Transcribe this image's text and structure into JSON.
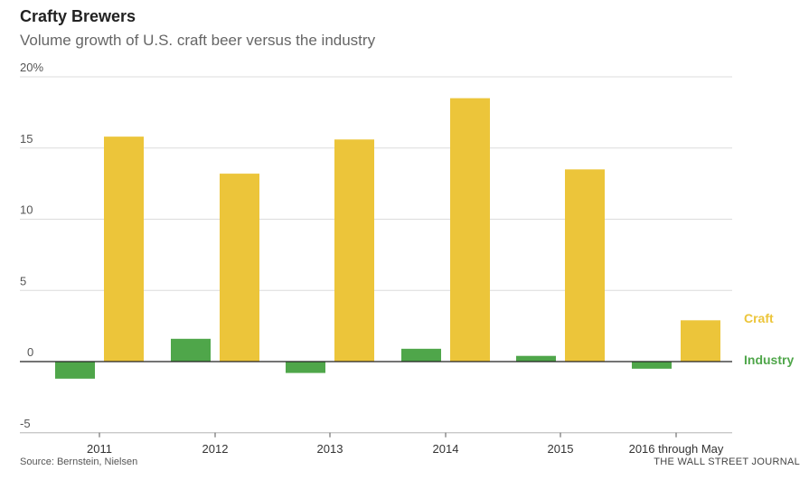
{
  "title": "Crafty Brewers",
  "subtitle": "Volume growth of U.S. craft beer versus the industry",
  "source": "Source: Bernstein, Nielsen",
  "credit": "THE WALL STREET JOURNAL",
  "chart_data": {
    "type": "bar",
    "categories": [
      "2011",
      "2012",
      "2013",
      "2014",
      "2015",
      "2016 through May"
    ],
    "series": [
      {
        "name": "Industry",
        "color": "#4fa64a",
        "values": [
          -1.2,
          1.6,
          -0.8,
          0.9,
          0.4,
          -0.5
        ]
      },
      {
        "name": "Craft",
        "color": "#ecc53a",
        "values": [
          15.8,
          13.2,
          15.6,
          18.5,
          13.5,
          2.9
        ]
      }
    ],
    "yticks": [
      "20%",
      "15",
      "10",
      "5",
      "0",
      "-5"
    ],
    "ytick_values": [
      20,
      15,
      10,
      5,
      0,
      -5
    ],
    "ylim": [
      -5,
      20
    ],
    "grid": true,
    "legend": "right, labels beside last bars"
  }
}
